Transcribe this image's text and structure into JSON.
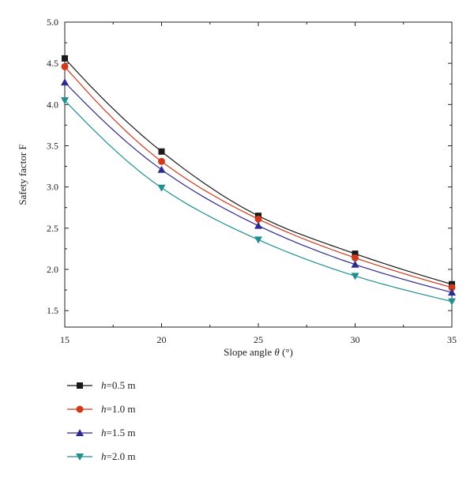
{
  "chart_data": {
    "type": "line",
    "title": "",
    "xlabel_text": "Slope angle ",
    "xlabel_symbol": "θ",
    "xlabel_unit": " (°)",
    "ylabel": "Safety factor F",
    "x": [
      15,
      20,
      25,
      30,
      35
    ],
    "xticks": [
      "15",
      "20",
      "25",
      "30",
      "35"
    ],
    "yticks": [
      "1.5",
      "2.0",
      "2.5",
      "3.0",
      "3.5",
      "4.0",
      "4.5",
      "5.0"
    ],
    "xlim": [
      15,
      35
    ],
    "ylim": [
      1.3,
      5.0
    ],
    "grid": false,
    "legend_position": "bottom-left, below plot",
    "series": [
      {
        "name": "h=0.5 m",
        "name_symbol": "h",
        "name_rest": "=0.5 m",
        "values": [
          4.56,
          3.43,
          2.65,
          2.19,
          1.82
        ],
        "color": "#1a1a1a",
        "marker": "square"
      },
      {
        "name": "h=1.0 m",
        "name_symbol": "h",
        "name_rest": "=1.0 m",
        "values": [
          4.46,
          3.31,
          2.61,
          2.14,
          1.78
        ],
        "color": "#cf3a1c",
        "marker": "circle"
      },
      {
        "name": "h=1.5 m",
        "name_symbol": "h",
        "name_rest": "=1.5 m",
        "values": [
          4.27,
          3.21,
          2.53,
          2.06,
          1.72
        ],
        "color": "#2e2a8e",
        "marker": "triangle-up"
      },
      {
        "name": "h=2.0 m",
        "name_symbol": "h",
        "name_rest": "=2.0 m",
        "values": [
          4.05,
          2.99,
          2.36,
          1.92,
          1.61
        ],
        "color": "#1f8f8f",
        "marker": "triangle-down"
      }
    ]
  }
}
